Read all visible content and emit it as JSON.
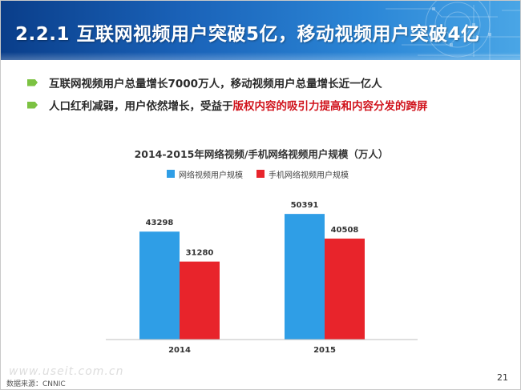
{
  "slide": {
    "title": "2.2.1 互联网视频用户突破5亿，移动视频用户突破4亿",
    "bullets": [
      {
        "text": "互联网视频用户总量增长7000万人，移动视频用户总量增长近一亿人"
      },
      {
        "text_before": "人口红利减弱，用户依然增长，受益于",
        "text_highlight": "版权内容的吸引力提高和内容分发的跨屏"
      }
    ],
    "source": "数据来源：CNNIC",
    "watermark": "www.useit.com.cn",
    "page_number": "21"
  },
  "colors": {
    "series_1": "#2f9ee6",
    "series_2": "#e8242b",
    "accent_bullet": "#7cc242",
    "highlight_text": "#d0121b",
    "header": "#1a62b8"
  },
  "chart_data": {
    "type": "bar",
    "title": "2014-2015年网络视频/手机网络视频用户规模（万人）",
    "categories": [
      "2014",
      "2015"
    ],
    "series": [
      {
        "name": "网络视频用户规模",
        "values": [
          43298,
          50391
        ]
      },
      {
        "name": "手机网络视频用户规模",
        "values": [
          31280,
          40508
        ]
      }
    ],
    "ylim": [
      0,
      62000
    ],
    "grid": false,
    "legend_position": "top-left",
    "data_labels": true
  }
}
